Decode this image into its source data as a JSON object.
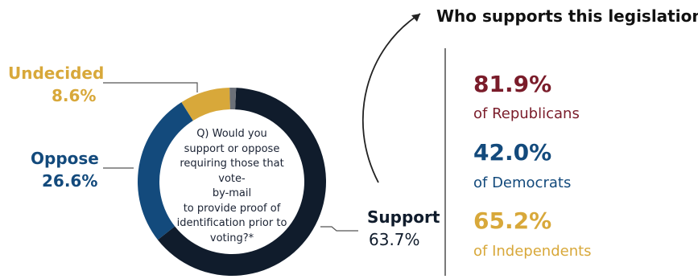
{
  "chart_data": {
    "type": "pie",
    "donut": true,
    "slices": [
      {
        "name": "Support",
        "value": 63.7,
        "label": "63.7%",
        "color": "#101c2c"
      },
      {
        "name": "Oppose",
        "value": 26.6,
        "label": "26.6%",
        "color": "#134a7c"
      },
      {
        "name": "Undecided",
        "value": 8.6,
        "label": "8.6%",
        "color": "#d8a83a"
      },
      {
        "name": "",
        "value": 1.1,
        "color": "#6b7078"
      }
    ],
    "center_text": [
      "Q) Would you",
      "support or oppose",
      "requiring those that vote-",
      "by-mail",
      "to provide proof of",
      "identification prior to",
      "voting?*"
    ],
    "legend": "callouts"
  },
  "side_panel": {
    "heading": "Who supports this legislation?",
    "stats": [
      {
        "value": "81.9%",
        "group": "of Republicans",
        "color": "#7a1c2a"
      },
      {
        "value": "42.0%",
        "group": "of Democrats",
        "color": "#134a7c"
      },
      {
        "value": "65.2%",
        "group": "of Independents",
        "color": "#d8a83a"
      }
    ]
  },
  "colors": {
    "support": "#101c2c",
    "oppose": "#134a7c",
    "undecided": "#d8a83a",
    "leader": "#555555"
  }
}
